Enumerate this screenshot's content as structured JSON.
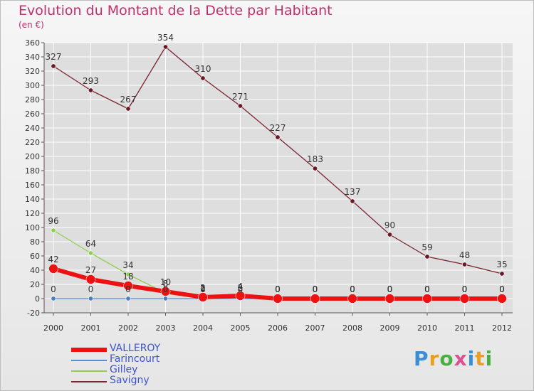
{
  "title": "Evolution du Montant de la Dette par Habitant",
  "unit_label": "(en €)",
  "logo_text": "Proxiti",
  "colors": {
    "title": "#c0306a",
    "legend_text": "#3e54c8",
    "axis": "#555555",
    "grid": "#ffffff"
  },
  "chart_data": {
    "type": "line",
    "x": [
      "2000",
      "2001",
      "2002",
      "2003",
      "2004",
      "2005",
      "2006",
      "2007",
      "2008",
      "2009",
      "2010",
      "2011",
      "2012"
    ],
    "ylim": [
      -20,
      360
    ],
    "y_ticks": [
      -20,
      0,
      20,
      40,
      60,
      80,
      100,
      120,
      140,
      160,
      180,
      200,
      220,
      240,
      260,
      280,
      300,
      320,
      340,
      360
    ],
    "grid": true,
    "legend_position": "bottom-left",
    "series": [
      {
        "name": "Savigny",
        "color": "#7a2430",
        "marker": "#6a1a24",
        "width": 1.3,
        "r": 3.2,
        "values": [
          327,
          293,
          267,
          354,
          310,
          271,
          227,
          183,
          137,
          90,
          59,
          48,
          35
        ],
        "labels": [
          "327",
          "293",
          "267",
          "354",
          "310",
          "271",
          "227",
          "183",
          "137",
          "90",
          "59",
          "48",
          "35"
        ]
      },
      {
        "name": "Gilley",
        "color": "#8ed04e",
        "marker": "#8ed04e",
        "width": 1.3,
        "r": 3.2,
        "values": [
          96,
          64,
          34,
          8,
          1,
          2,
          0,
          0,
          0,
          0,
          0,
          0,
          0
        ],
        "labels": [
          "96",
          "64",
          "34",
          "8",
          "1",
          "2",
          "0",
          "0",
          "0",
          "0",
          "0",
          "0",
          "0"
        ]
      },
      {
        "name": "Farincourt",
        "color": "#5a8ed0",
        "marker": "#4a7ec0",
        "width": 1.3,
        "r": 3.2,
        "values": [
          0,
          0,
          0,
          0,
          0,
          0,
          0,
          0,
          0,
          0,
          0,
          0,
          0
        ],
        "labels": [
          "0",
          "0",
          "0",
          "0",
          "0",
          "0",
          "0",
          "0",
          "0",
          "0",
          "0",
          "0",
          "0"
        ]
      },
      {
        "name": "VALLEROY",
        "color": "#ee1111",
        "marker": "#ee1111",
        "width": 6,
        "r": 6.5,
        "values": [
          42,
          27,
          18,
          10,
          2,
          4,
          0,
          0,
          0,
          0,
          0,
          0,
          0
        ],
        "labels": [
          "42",
          "27",
          "18",
          "10",
          "2",
          "4",
          "0",
          "0",
          "0",
          "0",
          "0",
          "0",
          "0"
        ]
      }
    ]
  },
  "legend": [
    {
      "name": "VALLEROY",
      "color": "#ee1111",
      "thickness": 6
    },
    {
      "name": "Farincourt",
      "color": "#5a8ed0",
      "thickness": 2
    },
    {
      "name": "Gilley",
      "color": "#8ed04e",
      "thickness": 2
    },
    {
      "name": "Savigny",
      "color": "#7a2430",
      "thickness": 2
    }
  ]
}
